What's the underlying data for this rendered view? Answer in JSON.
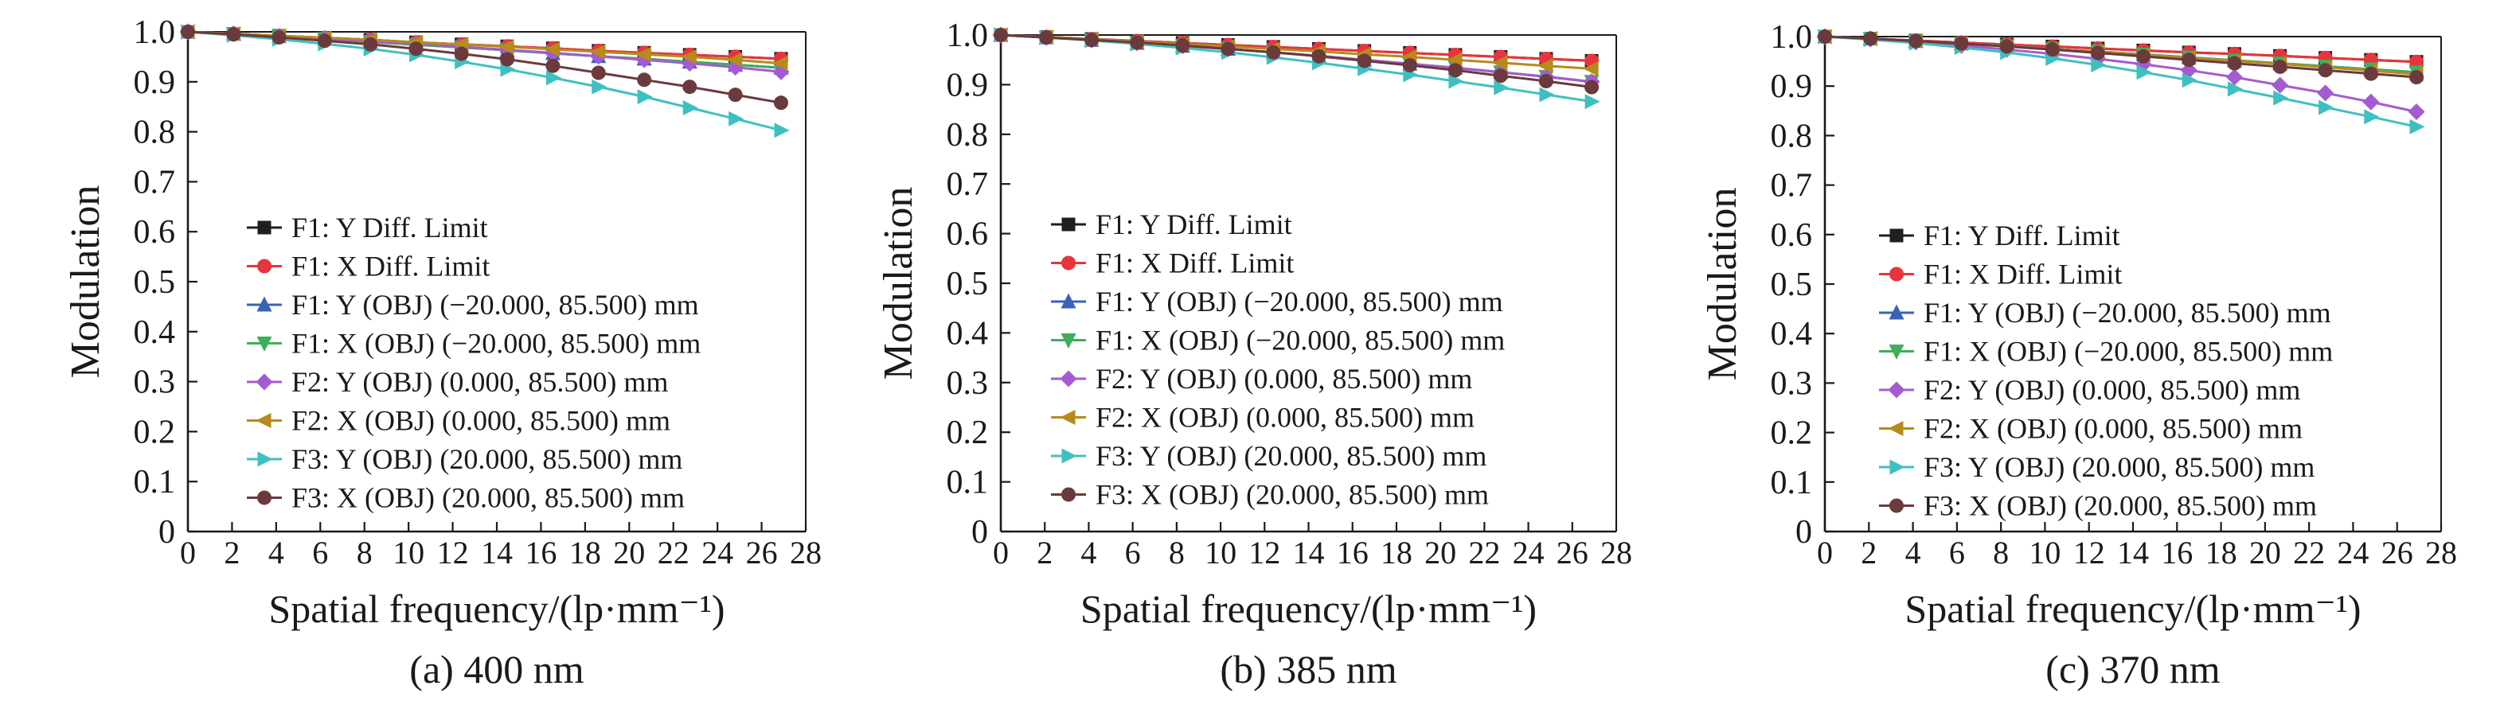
{
  "chart_data": [
    {
      "type": "line",
      "caption": "(a) 400 nm",
      "xlabel": "Spatial frequency/(lp·mm⁻¹)",
      "ylabel": "Modulation",
      "xlim": [
        0,
        28
      ],
      "ylim": [
        0,
        1.0
      ],
      "xticks": [
        "0",
        "2",
        "4",
        "6",
        "8",
        "10",
        "12",
        "14",
        "16",
        "18",
        "20",
        "22",
        "24",
        "26",
        "28"
      ],
      "yticks": [
        "0",
        "0.1",
        "0.2",
        "0.3",
        "0.4",
        "0.5",
        "0.6",
        "0.7",
        "0.8",
        "0.9",
        "1.0"
      ],
      "legend_position": "lower-left",
      "x": [
        0,
        2.07,
        4.13,
        6.2,
        8.27,
        10.34,
        12.4,
        14.47,
        16.54,
        18.61,
        20.68,
        22.74,
        24.81,
        26.88
      ],
      "series": [
        {
          "name": "F1: Y Diff. Limit",
          "color": "#1f1f1f",
          "marker": "square",
          "values": [
            1.0,
            0.996,
            0.992,
            0.988,
            0.984,
            0.979,
            0.975,
            0.971,
            0.967,
            0.962,
            0.958,
            0.954,
            0.95,
            0.946
          ]
        },
        {
          "name": "F1: X Diff. Limit",
          "color": "#e8343c",
          "marker": "circle",
          "values": [
            1.0,
            0.996,
            0.992,
            0.988,
            0.984,
            0.979,
            0.975,
            0.971,
            0.967,
            0.962,
            0.958,
            0.954,
            0.95,
            0.946
          ]
        },
        {
          "name": "F1: Y (OBJ) (−20.000, 85.500) mm",
          "color": "#3a62b5",
          "marker": "triangle-up",
          "values": [
            1.0,
            0.996,
            0.991,
            0.986,
            0.98,
            0.974,
            0.969,
            0.963,
            0.957,
            0.951,
            0.946,
            0.94,
            0.934,
            0.928
          ]
        },
        {
          "name": "F1: X (OBJ) (−20.000, 85.500) mm",
          "color": "#3fae5a",
          "marker": "triangle-down",
          "values": [
            1.0,
            0.996,
            0.991,
            0.986,
            0.98,
            0.974,
            0.969,
            0.963,
            0.957,
            0.951,
            0.946,
            0.94,
            0.934,
            0.928
          ]
        },
        {
          "name": "F2: Y (OBJ) (0.000, 85.500) mm",
          "color": "#a45bd1",
          "marker": "diamond",
          "values": [
            1.0,
            0.996,
            0.991,
            0.986,
            0.981,
            0.976,
            0.97,
            0.964,
            0.958,
            0.951,
            0.944,
            0.937,
            0.929,
            0.92
          ]
        },
        {
          "name": "F2: X (OBJ) (0.000, 85.500) mm",
          "color": "#b88a1c",
          "marker": "triangle-left",
          "values": [
            1.0,
            0.996,
            0.992,
            0.988,
            0.984,
            0.979,
            0.975,
            0.97,
            0.965,
            0.96,
            0.955,
            0.95,
            0.944,
            0.937
          ]
        },
        {
          "name": "F3: Y (OBJ) (20.000, 85.500) mm",
          "color": "#3fc0c0",
          "marker": "triangle-right",
          "values": [
            1.0,
            0.993,
            0.985,
            0.976,
            0.966,
            0.954,
            0.94,
            0.925,
            0.908,
            0.89,
            0.87,
            0.848,
            0.826,
            0.803
          ]
        },
        {
          "name": "F3: X (OBJ) (20.000, 85.500) mm",
          "color": "#6b3a3c",
          "marker": "circle",
          "values": [
            1.0,
            0.995,
            0.989,
            0.982,
            0.975,
            0.966,
            0.956,
            0.945,
            0.932,
            0.918,
            0.904,
            0.89,
            0.874,
            0.858
          ]
        }
      ]
    },
    {
      "type": "line",
      "caption": "(b) 385 nm",
      "xlabel": "Spatial frequency/(lp·mm⁻¹)",
      "ylabel": "Modulation",
      "xlim": [
        0,
        28
      ],
      "ylim": [
        0,
        1.0
      ],
      "xticks": [
        "0",
        "2",
        "4",
        "6",
        "8",
        "10",
        "12",
        "14",
        "16",
        "18",
        "20",
        "22",
        "24",
        "26",
        "28"
      ],
      "yticks": [
        "0",
        "0.1",
        "0.2",
        "0.3",
        "0.4",
        "0.5",
        "0.6",
        "0.7",
        "0.8",
        "0.9",
        "1.0"
      ],
      "legend_position": "lower-left",
      "x": [
        0,
        2.07,
        4.13,
        6.2,
        8.27,
        10.34,
        12.4,
        14.47,
        16.54,
        18.61,
        20.68,
        22.74,
        24.81,
        26.88
      ],
      "series": [
        {
          "name": "F1: Y Diff. Limit",
          "color": "#1f1f1f",
          "marker": "square",
          "values": [
            1.0,
            0.996,
            0.992,
            0.988,
            0.984,
            0.98,
            0.976,
            0.972,
            0.968,
            0.964,
            0.96,
            0.956,
            0.952,
            0.948
          ]
        },
        {
          "name": "F1: X Diff. Limit",
          "color": "#e8343c",
          "marker": "circle",
          "values": [
            1.0,
            0.996,
            0.992,
            0.988,
            0.984,
            0.98,
            0.976,
            0.972,
            0.968,
            0.964,
            0.96,
            0.956,
            0.952,
            0.948
          ]
        },
        {
          "name": "F1: Y (OBJ) (−20.000, 85.500) mm",
          "color": "#3a62b5",
          "marker": "triangle-up",
          "values": [
            1.0,
            0.995,
            0.99,
            0.984,
            0.978,
            0.972,
            0.965,
            0.958,
            0.95,
            0.942,
            0.934,
            0.925,
            0.916,
            0.906
          ]
        },
        {
          "name": "F1: X (OBJ) (−20.000, 85.500) mm",
          "color": "#3fae5a",
          "marker": "triangle-down",
          "values": [
            1.0,
            0.995,
            0.99,
            0.984,
            0.978,
            0.972,
            0.965,
            0.958,
            0.95,
            0.942,
            0.934,
            0.925,
            0.916,
            0.906
          ]
        },
        {
          "name": "F2: Y (OBJ) (0.000, 85.500) mm",
          "color": "#a45bd1",
          "marker": "diamond",
          "values": [
            1.0,
            0.995,
            0.99,
            0.984,
            0.978,
            0.972,
            0.965,
            0.958,
            0.95,
            0.942,
            0.934,
            0.925,
            0.916,
            0.906
          ]
        },
        {
          "name": "F2: X (OBJ) (0.000, 85.500) mm",
          "color": "#b88a1c",
          "marker": "triangle-left",
          "values": [
            1.0,
            0.996,
            0.992,
            0.987,
            0.982,
            0.977,
            0.972,
            0.967,
            0.961,
            0.956,
            0.95,
            0.944,
            0.938,
            0.932
          ]
        },
        {
          "name": "F3: Y (OBJ) (20.000, 85.500) mm",
          "color": "#3fc0c0",
          "marker": "triangle-right",
          "values": [
            1.0,
            0.995,
            0.989,
            0.982,
            0.974,
            0.965,
            0.955,
            0.944,
            0.932,
            0.92,
            0.907,
            0.894,
            0.88,
            0.866
          ]
        },
        {
          "name": "F3: X (OBJ) (20.000, 85.500) mm",
          "color": "#6b3a3c",
          "marker": "circle",
          "values": [
            1.0,
            0.995,
            0.99,
            0.985,
            0.979,
            0.972,
            0.965,
            0.957,
            0.948,
            0.939,
            0.929,
            0.918,
            0.907,
            0.895
          ]
        }
      ]
    },
    {
      "type": "line",
      "caption": "(c) 370 nm",
      "xlabel": "Spatial frequency/(lp·mm⁻¹)",
      "ylabel": "Modulation",
      "xlim": [
        0,
        28
      ],
      "ylim": [
        0,
        1.0
      ],
      "xticks": [
        "0",
        "2",
        "4",
        "6",
        "8",
        "10",
        "12",
        "14",
        "16",
        "18",
        "20",
        "22",
        "24",
        "26",
        "28"
      ],
      "yticks": [
        "0",
        "0.1",
        "0.2",
        "0.3",
        "0.4",
        "0.5",
        "0.6",
        "0.7",
        "0.8",
        "0.9",
        "1.0"
      ],
      "legend_position": "lower-left",
      "x": [
        0,
        2.07,
        4.13,
        6.2,
        8.27,
        10.34,
        12.4,
        14.47,
        16.54,
        18.61,
        20.68,
        22.74,
        24.81,
        26.88
      ],
      "series": [
        {
          "name": "F1: Y Diff. Limit",
          "color": "#1f1f1f",
          "marker": "square",
          "values": [
            1.0,
            0.996,
            0.992,
            0.988,
            0.984,
            0.98,
            0.976,
            0.972,
            0.968,
            0.965,
            0.961,
            0.957,
            0.953,
            0.949
          ]
        },
        {
          "name": "F1: X Diff. Limit",
          "color": "#e8343c",
          "marker": "circle",
          "values": [
            1.0,
            0.996,
            0.992,
            0.988,
            0.984,
            0.98,
            0.976,
            0.972,
            0.968,
            0.965,
            0.961,
            0.957,
            0.953,
            0.949
          ]
        },
        {
          "name": "F1: Y (OBJ) (−20.000, 85.500) mm",
          "color": "#3a62b5",
          "marker": "triangle-up",
          "values": [
            1.0,
            0.996,
            0.991,
            0.986,
            0.981,
            0.975,
            0.97,
            0.964,
            0.958,
            0.952,
            0.946,
            0.94,
            0.934,
            0.928
          ]
        },
        {
          "name": "F1: X (OBJ) (−20.000, 85.500) mm",
          "color": "#3fae5a",
          "marker": "triangle-down",
          "values": [
            1.0,
            0.996,
            0.991,
            0.986,
            0.981,
            0.975,
            0.97,
            0.964,
            0.958,
            0.952,
            0.946,
            0.94,
            0.934,
            0.928
          ]
        },
        {
          "name": "F2: Y (OBJ) (0.000, 85.500) mm",
          "color": "#a45bd1",
          "marker": "diamond",
          "values": [
            1.0,
            0.995,
            0.989,
            0.982,
            0.974,
            0.965,
            0.955,
            0.944,
            0.932,
            0.918,
            0.902,
            0.886,
            0.868,
            0.848
          ]
        },
        {
          "name": "F2: X (OBJ) (0.000, 85.500) mm",
          "color": "#b88a1c",
          "marker": "triangle-left",
          "values": [
            1.0,
            0.996,
            0.991,
            0.986,
            0.98,
            0.975,
            0.969,
            0.963,
            0.957,
            0.951,
            0.945,
            0.938,
            0.931,
            0.924
          ]
        },
        {
          "name": "F3: Y (OBJ) (20.000, 85.500) mm",
          "color": "#3fc0c0",
          "marker": "triangle-right",
          "values": [
            1.0,
            0.994,
            0.987,
            0.978,
            0.968,
            0.956,
            0.943,
            0.928,
            0.912,
            0.894,
            0.876,
            0.857,
            0.838,
            0.818
          ]
        },
        {
          "name": "F3: X (OBJ) (20.000, 85.500) mm",
          "color": "#6b3a3c",
          "marker": "circle",
          "values": [
            1.0,
            0.996,
            0.991,
            0.986,
            0.98,
            0.974,
            0.967,
            0.96,
            0.953,
            0.946,
            0.939,
            0.932,
            0.925,
            0.918
          ]
        }
      ]
    }
  ]
}
